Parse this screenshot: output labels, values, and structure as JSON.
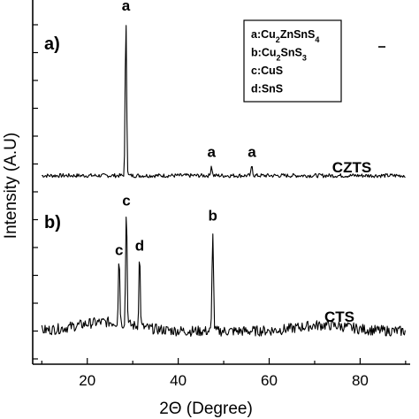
{
  "chart_data": {
    "type": "line",
    "xlabel": "2Θ (Degree)",
    "ylabel": "Intensity (A.U)",
    "xlim": [
      8,
      91
    ],
    "x_ticks": [
      "20",
      "40",
      "60",
      "80"
    ],
    "x_tick_values": [
      20,
      40,
      60,
      80
    ],
    "grid": false,
    "legend_position": "top-right",
    "legend": [
      {
        "key": "a",
        "base": "Cu",
        "parts": [
          [
            "Cu",
            ""
          ],
          [
            "2",
            "sub"
          ],
          [
            "ZnSnS",
            ""
          ],
          [
            "4",
            "sub"
          ]
        ]
      },
      {
        "key": "b",
        "parts": [
          [
            "Cu",
            ""
          ],
          [
            "2",
            "sub"
          ],
          [
            "SnS",
            ""
          ],
          [
            "3",
            "sub"
          ]
        ]
      },
      {
        "key": "c",
        "parts": [
          [
            "CuS",
            ""
          ]
        ]
      },
      {
        "key": "d",
        "parts": [
          [
            "SnS",
            ""
          ]
        ]
      }
    ],
    "panels": [
      {
        "tag": "a)",
        "name": "CZTS",
        "x_range": [
          10,
          90
        ],
        "baseline": 0.08,
        "noise": 0.012,
        "peaks": [
          {
            "x": 28.5,
            "height": 0.92,
            "label": "a"
          },
          {
            "x": 47.3,
            "height": 0.06,
            "label": "a"
          },
          {
            "x": 56.2,
            "height": 0.06,
            "label": "a"
          }
        ]
      },
      {
        "tag": "b)",
        "name": "CTS",
        "x_range": [
          10,
          90
        ],
        "baseline": 0.12,
        "noise": 0.035,
        "peaks": [
          {
            "x": 27.0,
            "height": 0.45,
            "label": "c"
          },
          {
            "x": 28.6,
            "height": 0.78,
            "label": "c"
          },
          {
            "x": 31.5,
            "height": 0.48,
            "label": "d"
          },
          {
            "x": 47.6,
            "height": 0.68,
            "label": "b"
          }
        ]
      }
    ]
  }
}
